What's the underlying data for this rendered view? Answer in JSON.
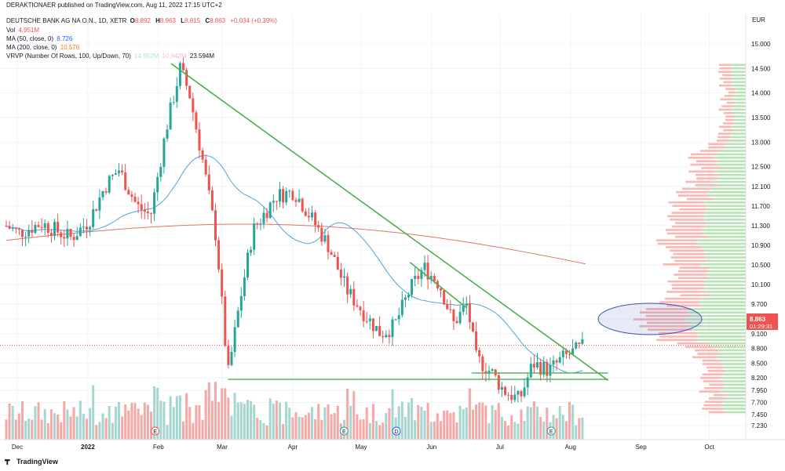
{
  "header": {
    "publisher": "DERAKTIONAER published on TradingView.com, Aug 11, 2022 17:15 UTC+2",
    "symbol": "DEUTSCHE BANK AG NA O.N., 1D, XETR",
    "ohlc": [
      {
        "k": "O",
        "v": "8.892"
      },
      {
        "k": "H",
        "v": "8.963"
      },
      {
        "k": "L",
        "v": "8.815"
      },
      {
        "k": "C",
        "v": "8.863"
      }
    ],
    "change": "+0.034 (+0.39%)",
    "vol_label": "Vol",
    "vol_value": "4.951M",
    "ma50_label": "MA (50, close, 0)",
    "ma50_value": "8.726",
    "ma200_label": "MA (200, close, 0)",
    "ma200_value": "10.576",
    "vrvp_label": "VRVP (Number Of Rows, 100, Up/Down, 70)",
    "vrvp_v1": "14.952M",
    "vrvp_v2": "10.942M",
    "vrvp_v3": "23.594M"
  },
  "currency": "EUR",
  "price_tag": {
    "price": "8.863",
    "countdown": "01:29:31"
  },
  "brand": "TradingView",
  "colors": {
    "up": "#26a69a",
    "down": "#ef5350",
    "ma50": "#4fa3e0",
    "ma200": "#e57368",
    "trend": "#4caf50",
    "highlight": "#3f51b5"
  },
  "chart_data": {
    "type": "candlestick",
    "y_ticks": [
      7.23,
      7.45,
      7.7,
      7.95,
      8.2,
      8.5,
      8.8,
      9.1,
      9.4,
      9.7,
      10.1,
      10.5,
      10.9,
      11.3,
      11.7,
      12.1,
      12.5,
      13.0,
      13.5,
      14.0,
      14.5,
      15.0
    ],
    "y_tick_labels": [
      "7.230",
      "7.450",
      "7.700",
      "7.950",
      "8.200",
      "8.500",
      "8.800",
      "9.100",
      "9.400",
      "9.700",
      "10.100",
      "10.500",
      "10.900",
      "11.300",
      "11.700",
      "12.100",
      "12.500",
      "13.000",
      "13.500",
      "14.000",
      "14.500",
      "15.000"
    ],
    "x_labels": [
      "Dec",
      "2022",
      "Feb",
      "Mar",
      "Apr",
      "May",
      "Jun",
      "Jul",
      "Aug",
      "Sep",
      "Oct"
    ],
    "event_markers": [
      {
        "label": "E",
        "kind": "earnings",
        "date": "2022-02-03"
      },
      {
        "label": "E",
        "kind": "earnings",
        "date": "2022-04-27"
      },
      {
        "label": "D",
        "kind": "dividend",
        "date": "2022-05-20"
      },
      {
        "label": "E",
        "kind": "earnings",
        "date": "2022-07-27"
      }
    ],
    "last_price": 8.863,
    "trendlines": [
      {
        "from": {
          "date": "2022-02-10",
          "price": 14.6
        },
        "to": {
          "date": "2022-08-21",
          "price": 8.15
        }
      },
      {
        "from": {
          "date": "2022-05-26",
          "price": 10.55
        },
        "to": {
          "date": "2022-06-20",
          "price": 9.62
        }
      }
    ],
    "support_levels": [
      {
        "price": 8.3,
        "from": "2022-06-22",
        "to": "2022-08-21"
      },
      {
        "price": 8.17,
        "from": "2022-03-07",
        "to": "2022-08-21"
      }
    ],
    "highlight_zone": {
      "center_price": 9.4,
      "label": ""
    }
  }
}
